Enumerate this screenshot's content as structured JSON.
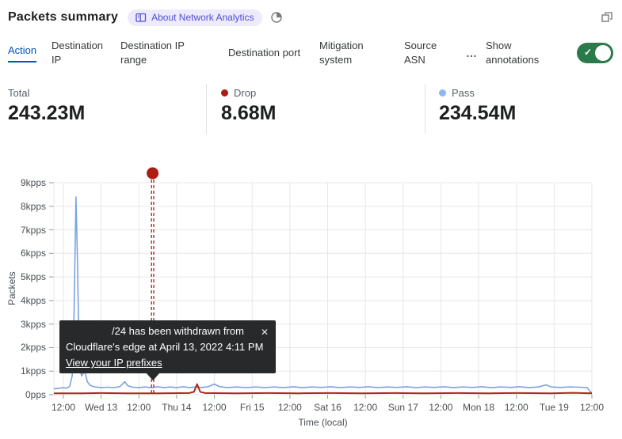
{
  "header": {
    "title": "Packets summary",
    "about_badge": "About Network Analytics"
  },
  "icons": {
    "close_glyph": "✕",
    "check_glyph": "✓"
  },
  "tabs": {
    "items": [
      {
        "label": "Action",
        "active": true
      },
      {
        "label": "Destination IP",
        "active": false
      },
      {
        "label": "Destination IP range",
        "active": false
      },
      {
        "label": "Destination port",
        "active": false
      },
      {
        "label": "Mitigation system",
        "active": false
      },
      {
        "label": "Source ASN",
        "active": false
      }
    ],
    "overflow": "…",
    "show_annotations": {
      "label": "Show annotations",
      "on": true
    }
  },
  "stats": [
    {
      "label": "Total",
      "value": "243.23M",
      "dot_color": null
    },
    {
      "label": "Drop",
      "value": "8.68M",
      "dot_color": "#ad1c12"
    },
    {
      "label": "Pass",
      "value": "234.54M",
      "dot_color": "#8cb8ef"
    }
  ],
  "colors": {
    "accent_blue": "#0051c3",
    "pass_line": "#7ba3e2",
    "drop_line": "#b2271a",
    "toggle_on_green": "#2b7a4c",
    "badge_bg": "#edeafc",
    "badge_text": "#534fd0",
    "grid": "#e7e7e7",
    "tooltip_bg": "#28292b"
  },
  "chart_data": {
    "type": "line",
    "title": "Packets summary",
    "xlabel": "Time (local)",
    "ylabel": "Packets",
    "x_unit": "hours since first tick (Tue Apr 12 12:00, local)",
    "xlim_hours": [
      -3,
      168
    ],
    "ylim_kpps": [
      0,
      9
    ],
    "grid": true,
    "y_ticks": [
      "0pps",
      "1kpps",
      "2kpps",
      "3kpps",
      "4kpps",
      "5kpps",
      "6kpps",
      "7kpps",
      "8kpps",
      "9kpps"
    ],
    "x_ticks": [
      "12:00",
      "Wed 13",
      "12:00",
      "Thu 14",
      "12:00",
      "Fri 15",
      "12:00",
      "Sat 16",
      "12:00",
      "Sun 17",
      "12:00",
      "Mon 18",
      "12:00",
      "Tue 19",
      "12:00"
    ],
    "x_tick_interval_hours": 12,
    "series": [
      {
        "name": "Pass",
        "color": "#7ba3e2",
        "points": [
          [
            -3,
            0.25
          ],
          [
            -1,
            0.28
          ],
          [
            0,
            0.3
          ],
          [
            1,
            0.28
          ],
          [
            2,
            0.35
          ],
          [
            2.8,
            0.8
          ],
          [
            3.4,
            3.5
          ],
          [
            4,
            8.4
          ],
          [
            4.5,
            5.5
          ],
          [
            5,
            1.2
          ],
          [
            5.8,
            0.8
          ],
          [
            6.8,
            1.0
          ],
          [
            7.6,
            0.55
          ],
          [
            8.5,
            0.4
          ],
          [
            10,
            0.33
          ],
          [
            12,
            0.3
          ],
          [
            14,
            0.32
          ],
          [
            16,
            0.3
          ],
          [
            18,
            0.35
          ],
          [
            19.5,
            0.55
          ],
          [
            20.5,
            0.38
          ],
          [
            22,
            0.32
          ],
          [
            24,
            0.3
          ],
          [
            26,
            0.33
          ],
          [
            28,
            0.3
          ],
          [
            30,
            0.34
          ],
          [
            32,
            0.3
          ],
          [
            34,
            0.33
          ],
          [
            36,
            0.3
          ],
          [
            38,
            0.34
          ],
          [
            40,
            0.3
          ],
          [
            42,
            0.33
          ],
          [
            44,
            0.31
          ],
          [
            46,
            0.34
          ],
          [
            48,
            0.45
          ],
          [
            49.5,
            0.35
          ],
          [
            52,
            0.3
          ],
          [
            55,
            0.33
          ],
          [
            58,
            0.3
          ],
          [
            61,
            0.33
          ],
          [
            64,
            0.3
          ],
          [
            67,
            0.33
          ],
          [
            70,
            0.3
          ],
          [
            73,
            0.34
          ],
          [
            76,
            0.3
          ],
          [
            79,
            0.33
          ],
          [
            82,
            0.31
          ],
          [
            85,
            0.34
          ],
          [
            88,
            0.3
          ],
          [
            91,
            0.33
          ],
          [
            94,
            0.31
          ],
          [
            97,
            0.34
          ],
          [
            100,
            0.3
          ],
          [
            103,
            0.33
          ],
          [
            106,
            0.31
          ],
          [
            109,
            0.34
          ],
          [
            112,
            0.3
          ],
          [
            115,
            0.33
          ],
          [
            118,
            0.31
          ],
          [
            121,
            0.34
          ],
          [
            124,
            0.3
          ],
          [
            127,
            0.33
          ],
          [
            130,
            0.31
          ],
          [
            133,
            0.34
          ],
          [
            136,
            0.3
          ],
          [
            139,
            0.33
          ],
          [
            142,
            0.31
          ],
          [
            145,
            0.34
          ],
          [
            148,
            0.3
          ],
          [
            151,
            0.33
          ],
          [
            153.5,
            0.42
          ],
          [
            155,
            0.33
          ],
          [
            158,
            0.31
          ],
          [
            161,
            0.33
          ],
          [
            164,
            0.32
          ],
          [
            166.5,
            0.3
          ],
          [
            167.5,
            0.12
          ],
          [
            168,
            0.1
          ]
        ]
      },
      {
        "name": "Drop",
        "color": "#b2271a",
        "points": [
          [
            -3,
            0.06
          ],
          [
            6,
            0.06
          ],
          [
            12,
            0.07
          ],
          [
            20,
            0.06
          ],
          [
            30,
            0.06
          ],
          [
            40,
            0.07
          ],
          [
            41.5,
            0.12
          ],
          [
            42.5,
            0.45
          ],
          [
            43.5,
            0.12
          ],
          [
            45,
            0.07
          ],
          [
            55,
            0.06
          ],
          [
            65,
            0.07
          ],
          [
            75,
            0.06
          ],
          [
            85,
            0.07
          ],
          [
            95,
            0.06
          ],
          [
            105,
            0.07
          ],
          [
            115,
            0.06
          ],
          [
            125,
            0.07
          ],
          [
            135,
            0.06
          ],
          [
            145,
            0.07
          ],
          [
            155,
            0.06
          ],
          [
            162,
            0.08
          ],
          [
            168,
            0.06
          ]
        ]
      }
    ],
    "annotation": {
      "x_hours": 28.35,
      "marker_color": "#ad1c12",
      "tooltip": {
        "line1": "/24 has been withdrawn from",
        "line2": "Cloudflare's edge at April 13, 2022 4:11 PM",
        "link": "View your IP prefixes"
      }
    }
  }
}
